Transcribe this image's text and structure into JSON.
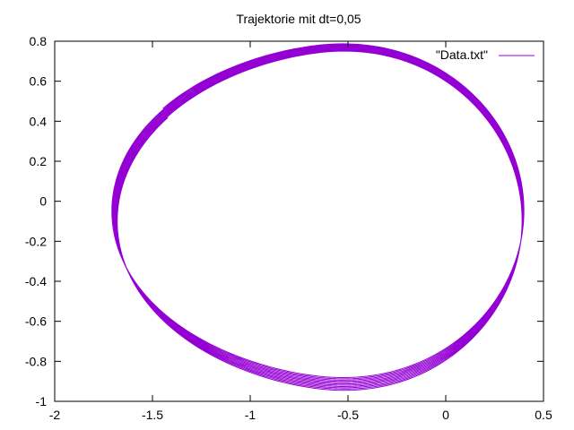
{
  "chart_data": {
    "type": "line",
    "title": "Trajektorie mit dt=0,05",
    "xlabel": "",
    "ylabel": "",
    "xlim": [
      -2,
      0.5
    ],
    "ylim": [
      -1,
      0.8
    ],
    "xticks": [
      "-2",
      "-1.5",
      "-1",
      "-0.5",
      "0",
      "0.5"
    ],
    "yticks": [
      "-1",
      "-0.8",
      "-0.6",
      "-0.4",
      "-0.2",
      "0",
      "0.2",
      "0.4",
      "0.6",
      "0.8"
    ],
    "grid": false,
    "legend_position": "top-right",
    "series": [
      {
        "name": "\"Data.txt\"",
        "color": "#9400d3",
        "description": "elliptical orbit trajectory drifting slightly each revolution",
        "orbit": {
          "revolutions": 11,
          "right_x": [
            0.39,
            0.4
          ],
          "left_x": [
            -1.68,
            -1.71
          ],
          "top_y": [
            0.74,
            0.78
          ],
          "bottom_y": [
            -0.94,
            -0.87
          ],
          "start_point": [
            -1.57,
            0.35
          ]
        }
      }
    ]
  }
}
